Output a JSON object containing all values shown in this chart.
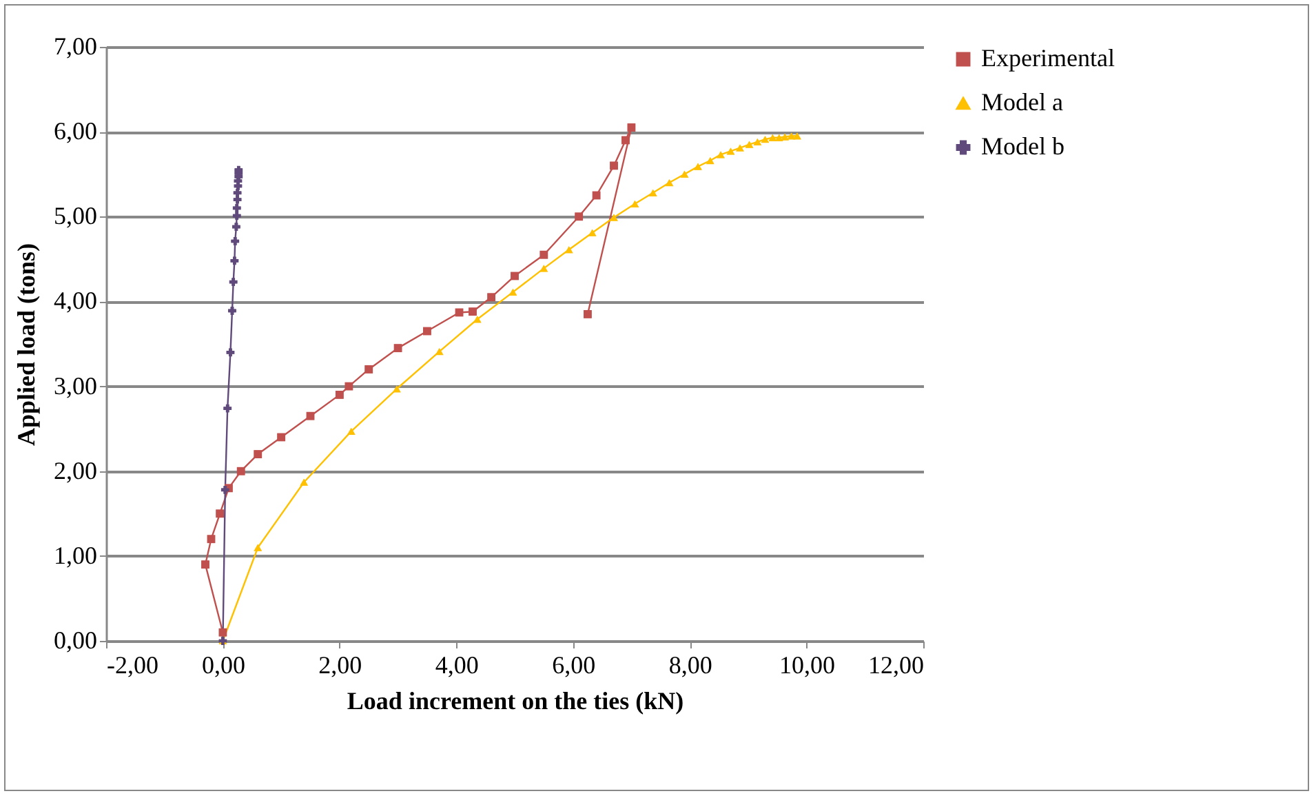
{
  "chart_data": {
    "type": "line",
    "xlabel": "Load increment on the ties (kN)",
    "ylabel": "Applied load (tons)",
    "xlim": [
      -2,
      12
    ],
    "ylim": [
      0,
      7
    ],
    "xticks": [
      {
        "value": -2,
        "label": "-2,00"
      },
      {
        "value": 0,
        "label": "0,00"
      },
      {
        "value": 2,
        "label": "2,00"
      },
      {
        "value": 4,
        "label": "4,00"
      },
      {
        "value": 6,
        "label": "6,00"
      },
      {
        "value": 8,
        "label": "8,00"
      },
      {
        "value": 10,
        "label": "10,00"
      },
      {
        "value": 12,
        "label": "12,00"
      }
    ],
    "yticks": [
      {
        "value": 0,
        "label": "0,00"
      },
      {
        "value": 1,
        "label": "1,00"
      },
      {
        "value": 2,
        "label": "2,00"
      },
      {
        "value": 3,
        "label": "3,00"
      },
      {
        "value": 4,
        "label": "4,00"
      },
      {
        "value": 5,
        "label": "5,00"
      },
      {
        "value": 6,
        "label": "6,00"
      },
      {
        "value": 7,
        "label": "7,00"
      }
    ],
    "grid": "y",
    "legend": "right",
    "series": [
      {
        "name": "Experimental",
        "color": "#c0504d",
        "marker": "square",
        "x": [
          0,
          -0.3,
          -0.2,
          -0.05,
          0.1,
          0.31,
          0.6,
          1.0,
          1.5,
          2.0,
          2.16,
          2.5,
          3.0,
          3.5,
          4.05,
          4.28,
          4.6,
          5.0,
          5.5,
          6.1,
          6.4,
          6.7,
          6.9,
          7.0,
          6.25
        ],
        "values": [
          0.1,
          0.9,
          1.2,
          1.5,
          1.8,
          2.0,
          2.2,
          2.4,
          2.65,
          2.9,
          3.0,
          3.2,
          3.45,
          3.65,
          3.87,
          3.88,
          4.05,
          4.3,
          4.55,
          5.0,
          5.25,
          5.6,
          5.9,
          6.05,
          3.85
        ]
      },
      {
        "name": "Model a",
        "color": "#ffc000",
        "marker": "triangle",
        "x": [
          0,
          0.6,
          1.39,
          2.2,
          2.98,
          3.71,
          4.36,
          4.97,
          5.5,
          5.93,
          6.33,
          6.7,
          7.06,
          7.37,
          7.65,
          7.91,
          8.14,
          8.35,
          8.53,
          8.7,
          8.86,
          9.02,
          9.16,
          9.29,
          9.42,
          9.53,
          9.63,
          9.74,
          9.84
        ],
        "values": [
          0,
          1.1,
          1.87,
          2.47,
          2.97,
          3.41,
          3.79,
          4.11,
          4.39,
          4.61,
          4.81,
          4.99,
          5.15,
          5.28,
          5.4,
          5.5,
          5.59,
          5.66,
          5.73,
          5.77,
          5.81,
          5.85,
          5.88,
          5.91,
          5.93,
          5.93,
          5.94,
          5.95,
          5.95
        ]
      },
      {
        "name": "Model b",
        "color": "#604a7b",
        "marker": "cross",
        "x": [
          0,
          0.04,
          0.08,
          0.13,
          0.16,
          0.18,
          0.2,
          0.21,
          0.23,
          0.24,
          0.24,
          0.25,
          0.25,
          0.26,
          0.26,
          0.27,
          0.27,
          0.27
        ],
        "values": [
          0,
          1.78,
          2.74,
          3.4,
          3.89,
          4.23,
          4.48,
          4.71,
          4.88,
          5.01,
          5.1,
          5.2,
          5.28,
          5.36,
          5.42,
          5.47,
          5.51,
          5.55
        ]
      }
    ]
  }
}
